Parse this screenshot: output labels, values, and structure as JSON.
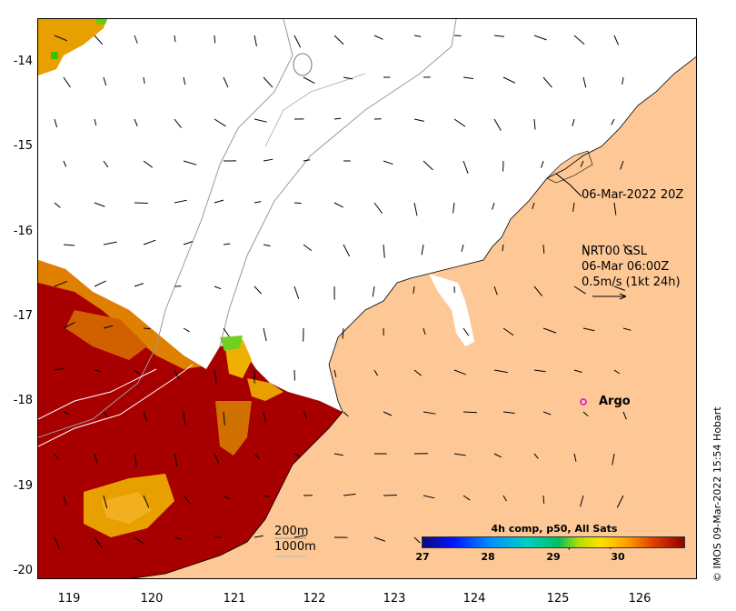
{
  "map": {
    "y_axis_labels": [
      "-14",
      "-15",
      "-16",
      "-17",
      "-18",
      "-19",
      "-20"
    ],
    "x_axis_labels": [
      "119",
      "120",
      "121",
      "122",
      "123",
      "124",
      "125",
      "126"
    ],
    "track_label": "06-Mar-2022 20Z",
    "current_source": "NRT00 GSL",
    "current_time": "06-Mar 06:00Z",
    "scale_label": "0.5m/s (1kt 24h)",
    "argo_label": "Argo",
    "isobath_200": "200m",
    "isobath_1000": "1000m",
    "colorbar_title": "4h comp, p50, All Sats",
    "colorbar_ticks": [
      "27",
      "28",
      "29",
      "30"
    ],
    "credit": "© IMOS 09-Mar-2022 15:54 Hobart",
    "colors": {
      "land": "#fdc896",
      "sst_hot": "#a80000",
      "sst_warm": "#e8a000",
      "argo_marker": "#e000e0"
    }
  }
}
